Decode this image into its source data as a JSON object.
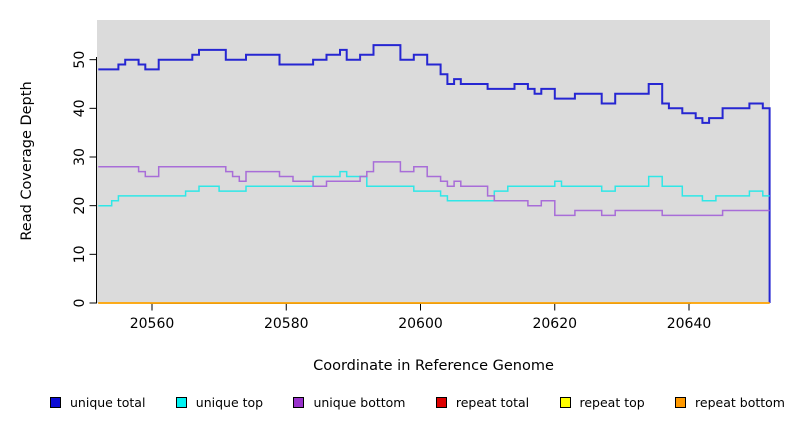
{
  "chart_data": {
    "type": "line",
    "style": "step",
    "title": "",
    "xlabel": "Coordinate in Reference Genome",
    "ylabel": "Read Coverage Depth",
    "xlim": [
      20552,
      20652
    ],
    "ylim": [
      0,
      58
    ],
    "x_ticks": [
      20560,
      20580,
      20600,
      20620,
      20640
    ],
    "y_ticks": [
      0,
      10,
      20,
      30,
      40,
      50
    ],
    "grid": "off",
    "legend_position": "bottom",
    "panel_bg": "#DBDBDB",
    "axis_color": "#000000",
    "series": [
      {
        "name": "unique total",
        "color": "#2626D2",
        "swatch": "#0B0BD4",
        "width": 2,
        "steps": [
          [
            20552,
            48
          ],
          [
            20555,
            49
          ],
          [
            20556,
            50
          ],
          [
            20558,
            49
          ],
          [
            20559,
            48
          ],
          [
            20561,
            50
          ],
          [
            20566,
            51
          ],
          [
            20567,
            52
          ],
          [
            20571,
            50
          ],
          [
            20574,
            51
          ],
          [
            20579,
            49
          ],
          [
            20584,
            50
          ],
          [
            20586,
            51
          ],
          [
            20588,
            52
          ],
          [
            20589,
            50
          ],
          [
            20591,
            51
          ],
          [
            20593,
            53
          ],
          [
            20597,
            50
          ],
          [
            20599,
            51
          ],
          [
            20601,
            49
          ],
          [
            20603,
            47
          ],
          [
            20604,
            45
          ],
          [
            20605,
            46
          ],
          [
            20606,
            45
          ],
          [
            20610,
            44
          ],
          [
            20614,
            45
          ],
          [
            20616,
            44
          ],
          [
            20617,
            43
          ],
          [
            20618,
            44
          ],
          [
            20620,
            42
          ],
          [
            20623,
            43
          ],
          [
            20627,
            41
          ],
          [
            20629,
            43
          ],
          [
            20634,
            45
          ],
          [
            20636,
            41
          ],
          [
            20637,
            40
          ],
          [
            20639,
            39
          ],
          [
            20641,
            38
          ],
          [
            20642,
            37
          ],
          [
            20643,
            38
          ],
          [
            20645,
            40
          ],
          [
            20649,
            41
          ],
          [
            20651,
            40
          ],
          [
            20652,
            0
          ]
        ]
      },
      {
        "name": "unique top",
        "color": "#2FE7E7",
        "swatch": "#00F2F2",
        "width": 1.5,
        "steps": [
          [
            20552,
            20
          ],
          [
            20554,
            21
          ],
          [
            20555,
            22
          ],
          [
            20565,
            23
          ],
          [
            20567,
            24
          ],
          [
            20570,
            23
          ],
          [
            20574,
            24
          ],
          [
            20584,
            26
          ],
          [
            20588,
            27
          ],
          [
            20589,
            26
          ],
          [
            20592,
            24
          ],
          [
            20599,
            23
          ],
          [
            20603,
            22
          ],
          [
            20604,
            21
          ],
          [
            20611,
            23
          ],
          [
            20613,
            24
          ],
          [
            20620,
            25
          ],
          [
            20621,
            24
          ],
          [
            20627,
            23
          ],
          [
            20629,
            24
          ],
          [
            20634,
            26
          ],
          [
            20636,
            24
          ],
          [
            20639,
            22
          ],
          [
            20642,
            21
          ],
          [
            20644,
            22
          ],
          [
            20649,
            23
          ],
          [
            20651,
            22
          ]
        ]
      },
      {
        "name": "unique bottom",
        "color": "#A86DD8",
        "swatch": "#9932CC",
        "width": 1.5,
        "steps": [
          [
            20552,
            28
          ],
          [
            20558,
            27
          ],
          [
            20559,
            26
          ],
          [
            20561,
            28
          ],
          [
            20571,
            27
          ],
          [
            20572,
            26
          ],
          [
            20573,
            25
          ],
          [
            20574,
            27
          ],
          [
            20579,
            26
          ],
          [
            20581,
            25
          ],
          [
            20584,
            24
          ],
          [
            20586,
            25
          ],
          [
            20591,
            26
          ],
          [
            20592,
            27
          ],
          [
            20593,
            29
          ],
          [
            20597,
            27
          ],
          [
            20599,
            28
          ],
          [
            20601,
            26
          ],
          [
            20603,
            25
          ],
          [
            20604,
            24
          ],
          [
            20605,
            25
          ],
          [
            20606,
            24
          ],
          [
            20610,
            22
          ],
          [
            20611,
            21
          ],
          [
            20616,
            20
          ],
          [
            20618,
            21
          ],
          [
            20620,
            18
          ],
          [
            20623,
            19
          ],
          [
            20627,
            18
          ],
          [
            20629,
            19
          ],
          [
            20636,
            18
          ],
          [
            20645,
            19
          ]
        ]
      },
      {
        "name": "repeat total",
        "color": "#DD1111",
        "swatch": "#DD0000",
        "width": 1.5,
        "steps": [
          [
            20552,
            0
          ]
        ]
      },
      {
        "name": "repeat top",
        "color": "#FFFF00",
        "swatch": "#FFFF00",
        "width": 1.5,
        "steps": [
          [
            20552,
            0
          ]
        ]
      },
      {
        "name": "repeat bottom",
        "color": "#FFA510",
        "swatch": "#FF9900",
        "width": 1.5,
        "steps": [
          [
            20552,
            0
          ]
        ]
      }
    ]
  },
  "legend": {
    "items": [
      {
        "label": "unique total",
        "color": "#0B0BD4"
      },
      {
        "label": "unique top",
        "color": "#00F2F2"
      },
      {
        "label": "unique bottom",
        "color": "#9932CC"
      },
      {
        "label": "repeat total",
        "color": "#DD0000"
      },
      {
        "label": "repeat top",
        "color": "#FFFF00"
      },
      {
        "label": "repeat bottom",
        "color": "#FF9900"
      }
    ]
  }
}
